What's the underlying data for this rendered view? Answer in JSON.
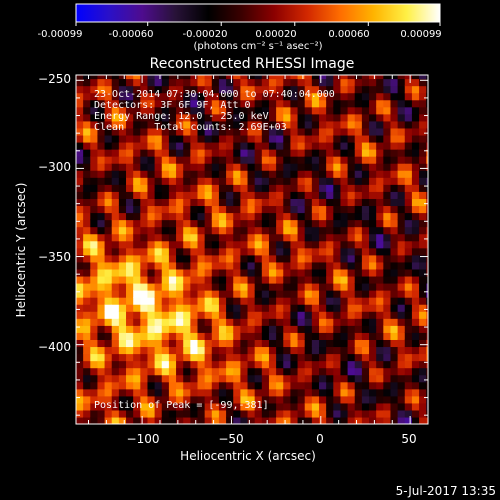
{
  "colorbar": {
    "tick_labels": [
      "-0.00099",
      "-0.00060",
      "-0.00020",
      "0.00020",
      "0.00060",
      "0.00099"
    ],
    "unit_label": "(photons cm⁻² s⁻¹ asec⁻²)",
    "range": [
      -0.00099,
      0.00099
    ],
    "palette": [
      "#0000ff",
      "#2a10c8",
      "#4e0c8e",
      "#281238",
      "#000000",
      "#3b0000",
      "#8c0000",
      "#d22800",
      "#ff6e00",
      "#ffb400",
      "#fff046",
      "#ffffff"
    ]
  },
  "chart_data": {
    "type": "heatmap",
    "title": "Reconstructed RHESSI Image",
    "xlabel": "Heliocentric X (arcsec)",
    "ylabel": "Heliocentric Y (arcsec)",
    "xlim": [
      -137,
      60
    ],
    "ylim": [
      -445,
      -247
    ],
    "x_ticks": [
      -100,
      -50,
      0,
      50
    ],
    "y_ticks": [
      -250,
      -300,
      -350,
      -400
    ],
    "x_tick_labels": [
      "−100",
      "−50",
      "0",
      "50"
    ],
    "y_tick_labels": [
      "−250",
      "−300",
      "−350",
      "−400"
    ],
    "pixel_size_arcsec": 4,
    "peak_position": [
      -99,
      -381
    ],
    "grid": false,
    "annotations": [
      "23-Oct-2014 07:30:04.000 to 07:40:04.000",
      "Detectors: 3F 6F 9F, Att 0",
      "Energy Range: 12.0 - 25.0 keV",
      "Clean     Total counts: 2.69E+03"
    ],
    "peak_label": "Position of Peak = [-99,-381]"
  },
  "footer": {
    "date": "5-Jul-2017 13:35"
  }
}
